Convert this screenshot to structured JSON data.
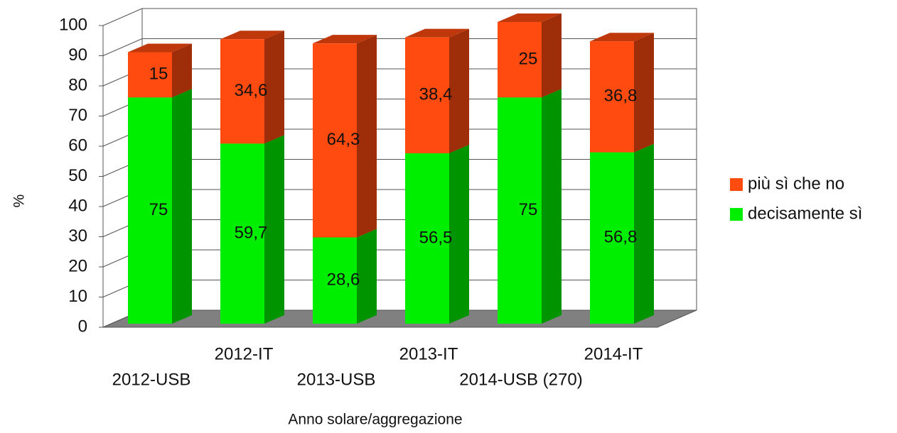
{
  "chart_data": {
    "type": "bar3d_stacked",
    "categories": [
      "2012-USB",
      "2012-IT",
      "2013-USB",
      "2013-IT",
      "2014-USB (270)",
      "2014-IT"
    ],
    "series": [
      {
        "name": "decisamente sì",
        "color": "#00ee00",
        "values": [
          75,
          59.7,
          28.6,
          56.5,
          75,
          56.8
        ],
        "value_labels": [
          "75",
          "59,7",
          "28,6",
          "56,5",
          "75",
          "56,8"
        ]
      },
      {
        "name": "più sì che no",
        "color": "#ff4a10",
        "values": [
          15,
          34.6,
          64.3,
          38.4,
          25,
          36.8
        ],
        "value_labels": [
          "15",
          "34,6",
          "64,3",
          "38,4",
          "25",
          "36,8"
        ]
      }
    ],
    "ylim": [
      0,
      100
    ],
    "yticks": [
      0,
      10,
      20,
      30,
      40,
      50,
      60,
      70,
      80,
      90,
      100
    ],
    "ylabel": "%",
    "xlabel": "Anno solare/aggregazione",
    "grid": true,
    "legend": "right"
  }
}
